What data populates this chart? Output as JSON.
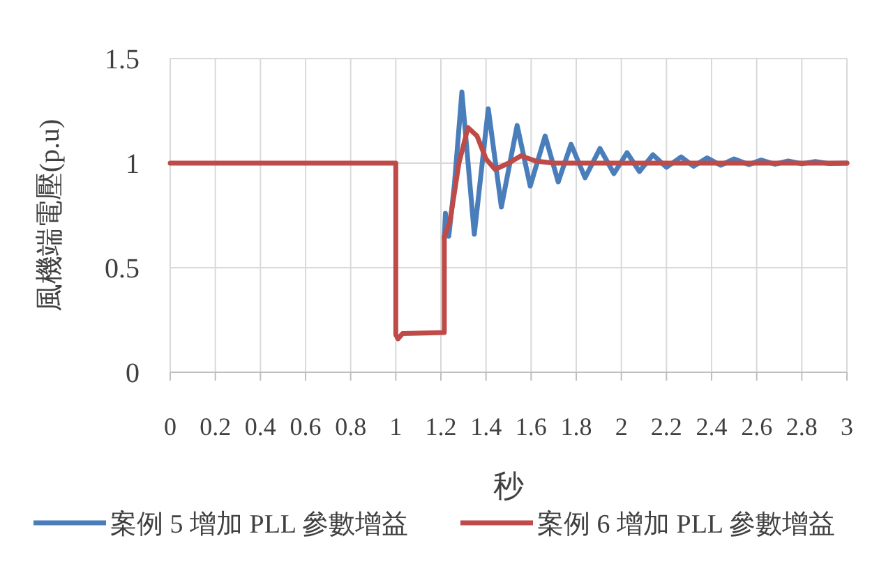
{
  "chart_data": {
    "type": "line",
    "xlabel": "秒",
    "ylabel": "風機端電壓(p.u)",
    "xlim": [
      0,
      3
    ],
    "xticks": [
      0,
      0.2,
      0.4,
      0.6,
      0.8,
      1,
      1.2,
      1.4,
      1.6,
      1.8,
      2,
      2.2,
      2.4,
      2.6,
      2.8,
      3
    ],
    "ylim": [
      0,
      1.5
    ],
    "yticks": [
      0,
      0.5,
      1,
      1.5
    ],
    "grid": true,
    "legend": "bottom",
    "line_style": "solid",
    "marker": "none",
    "series": [
      {
        "name": "案例 5 增加 PLL 參數增益",
        "color": "#4a7ebb",
        "x": [
          1.215,
          1.22,
          1.235,
          1.26,
          1.293,
          1.348,
          1.41,
          1.468,
          1.538,
          1.596,
          1.662,
          1.72,
          1.777,
          1.839,
          1.905,
          1.967,
          2.025,
          2.08,
          2.14,
          2.2,
          2.265,
          2.32,
          2.38,
          2.44,
          2.5,
          2.565,
          2.62,
          2.68,
          2.74,
          2.8,
          2.86,
          2.92,
          3
        ],
        "values": [
          0.64,
          0.76,
          0.65,
          0.9,
          1.34,
          0.66,
          1.26,
          0.79,
          1.18,
          0.89,
          1.13,
          0.91,
          1.09,
          0.93,
          1.07,
          0.95,
          1.05,
          0.96,
          1.04,
          0.98,
          1.03,
          0.985,
          1.025,
          0.99,
          1.02,
          0.993,
          1.015,
          0.995,
          1.01,
          0.997,
          1.008,
          0.998,
          1.0
        ]
      },
      {
        "name": "案例 6 增加 PLL 參數增益",
        "color": "#be4b48",
        "x": [
          0,
          1.0,
          1.0,
          1.01,
          1.03,
          1.215,
          1.215,
          1.24,
          1.28,
          1.32,
          1.36,
          1.4,
          1.44,
          1.5,
          1.555,
          1.62,
          1.7,
          3
        ],
        "values": [
          1,
          1,
          0.18,
          0.16,
          0.185,
          0.19,
          0.65,
          0.72,
          1.0,
          1.17,
          1.13,
          1.02,
          0.97,
          1.0,
          1.035,
          1.01,
          1.0,
          1.0
        ]
      }
    ]
  }
}
